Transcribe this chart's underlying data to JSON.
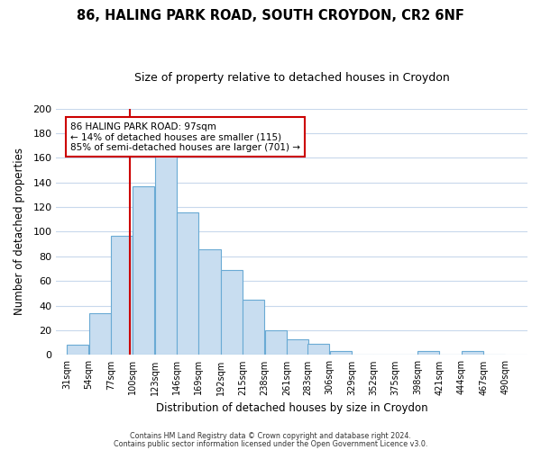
{
  "title": "86, HALING PARK ROAD, SOUTH CROYDON, CR2 6NF",
  "subtitle": "Size of property relative to detached houses in Croydon",
  "xlabel": "Distribution of detached houses by size in Croydon",
  "ylabel": "Number of detached properties",
  "bar_left_edges": [
    31,
    54,
    77,
    100,
    123,
    146,
    169,
    192,
    215,
    238,
    261,
    283,
    306,
    329,
    352,
    375,
    398,
    421,
    444,
    467
  ],
  "bar_heights": [
    8,
    34,
    97,
    137,
    165,
    116,
    86,
    69,
    45,
    20,
    13,
    9,
    3,
    0,
    0,
    0,
    3,
    0,
    3,
    0
  ],
  "bin_width": 23,
  "bar_color": "#c8ddf0",
  "bar_edgecolor": "#6aaad4",
  "tick_labels": [
    "31sqm",
    "54sqm",
    "77sqm",
    "100sqm",
    "123sqm",
    "146sqm",
    "169sqm",
    "192sqm",
    "215sqm",
    "238sqm",
    "261sqm",
    "283sqm",
    "306sqm",
    "329sqm",
    "352sqm",
    "375sqm",
    "398sqm",
    "421sqm",
    "444sqm",
    "467sqm",
    "490sqm"
  ],
  "tick_positions": [
    31,
    54,
    77,
    100,
    123,
    146,
    169,
    192,
    215,
    238,
    261,
    283,
    306,
    329,
    352,
    375,
    398,
    421,
    444,
    467,
    490
  ],
  "ylim": [
    0,
    200
  ],
  "yticks": [
    0,
    20,
    40,
    60,
    80,
    100,
    120,
    140,
    160,
    180,
    200
  ],
  "xlim_left": 20,
  "xlim_right": 513,
  "property_line_x": 97,
  "annotation_title": "86 HALING PARK ROAD: 97sqm",
  "annotation_line1": "← 14% of detached houses are smaller (115)",
  "annotation_line2": "85% of semi-detached houses are larger (701) →",
  "annotation_box_color": "#ffffff",
  "annotation_box_edgecolor": "#cc0000",
  "property_line_color": "#cc0000",
  "footer1": "Contains HM Land Registry data © Crown copyright and database right 2024.",
  "footer2": "Contains public sector information licensed under the Open Government Licence v3.0.",
  "background_color": "#ffffff",
  "grid_color": "#c8d8ec"
}
